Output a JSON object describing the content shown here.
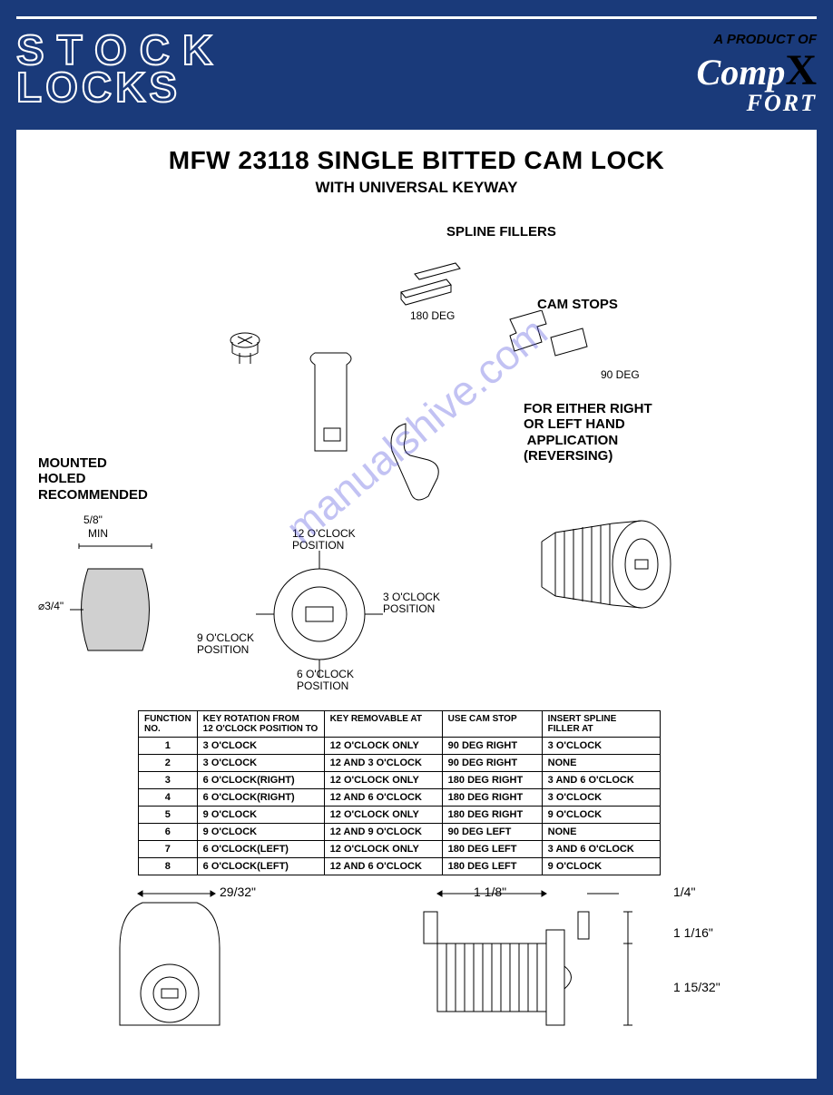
{
  "header": {
    "stock": "STOCK",
    "locks": "LOCKS",
    "product_of": "A PRODUCT OF",
    "compx": "Comp",
    "compx_x": "X",
    "fort": "FORT"
  },
  "title": "MFW 23118 SINGLE BITTED CAM LOCK",
  "subtitle": "WITH UNIVERSAL KEYWAY",
  "labels": {
    "spline_fillers": "SPLINE FILLERS",
    "deg180": "180 DEG",
    "cam_stops": "CAM STOPS",
    "deg90": "90 DEG",
    "reversing": "FOR EITHER RIGHT\nOR LEFT HAND\n APPLICATION\n(REVERSING)",
    "mounted": "MOUNTED\nHOLED\nRECOMMENDED",
    "five_eighths": "5/8\"",
    "min": "MIN",
    "three_quarter": "⌀3/4\"",
    "p12": "12 O'CLOCK\nPOSITION",
    "p3": "3 O'CLOCK\nPOSITION",
    "p6": "6 O'CLOCK\nPOSITION",
    "p9": "9 O'CLOCK\nPOSITION"
  },
  "watermark": "manualshive.com",
  "table": {
    "headers": {
      "fn": "FUNCTION\nNO.",
      "kr": "KEY ROTATION FROM\n12 O'CLOCK POSITION TO",
      "krem": "KEY REMOVABLE AT",
      "ucs": "USE CAM STOP",
      "isf": "INSERT SPLINE\nFILLER AT"
    },
    "rows": [
      {
        "fn": "1",
        "kr": "3 O'CLOCK",
        "krem": "12 O'CLOCK ONLY",
        "ucs": "90 DEG RIGHT",
        "isf": "3 O'CLOCK"
      },
      {
        "fn": "2",
        "kr": "3 O'CLOCK",
        "krem": "12 AND 3 O'CLOCK",
        "ucs": "90 DEG RIGHT",
        "isf": "NONE"
      },
      {
        "fn": "3",
        "kr": "6 O'CLOCK(RIGHT)",
        "krem": "12 O'CLOCK ONLY",
        "ucs": "180 DEG RIGHT",
        "isf": "3 AND 6 O'CLOCK"
      },
      {
        "fn": "4",
        "kr": "6 O'CLOCK(RIGHT)",
        "krem": "12 AND 6 O'CLOCK",
        "ucs": "180 DEG RIGHT",
        "isf": "3 O'CLOCK"
      },
      {
        "fn": "5",
        "kr": "9 O'CLOCK",
        "krem": "12 O'CLOCK ONLY",
        "ucs": "180 DEG RIGHT",
        "isf": "9 O'CLOCK"
      },
      {
        "fn": "6",
        "kr": "9 O'CLOCK",
        "krem": "12 AND 9 O'CLOCK",
        "ucs": "90 DEG LEFT",
        "isf": "NONE"
      },
      {
        "fn": "7",
        "kr": "6 O'CLOCK(LEFT)",
        "krem": "12 O'CLOCK ONLY",
        "ucs": "180 DEG LEFT",
        "isf": "3 AND 6 O'CLOCK"
      },
      {
        "fn": "8",
        "kr": "6 O'CLOCK(LEFT)",
        "krem": "12 AND 6 O'CLOCK",
        "ucs": "180 DEG LEFT",
        "isf": "9 O'CLOCK"
      }
    ]
  },
  "bottom_dims": {
    "d29_32": "29/32\"",
    "d1_1_8": "1 1/8\"",
    "d1_4": "1/4\"",
    "d1_1_16": "1 1/16\"",
    "d1_15_32": "1 15/32\""
  },
  "colors": {
    "brand_blue": "#1a3a7a",
    "text": "#000000",
    "watermark": "rgba(80,80,220,0.35)"
  }
}
